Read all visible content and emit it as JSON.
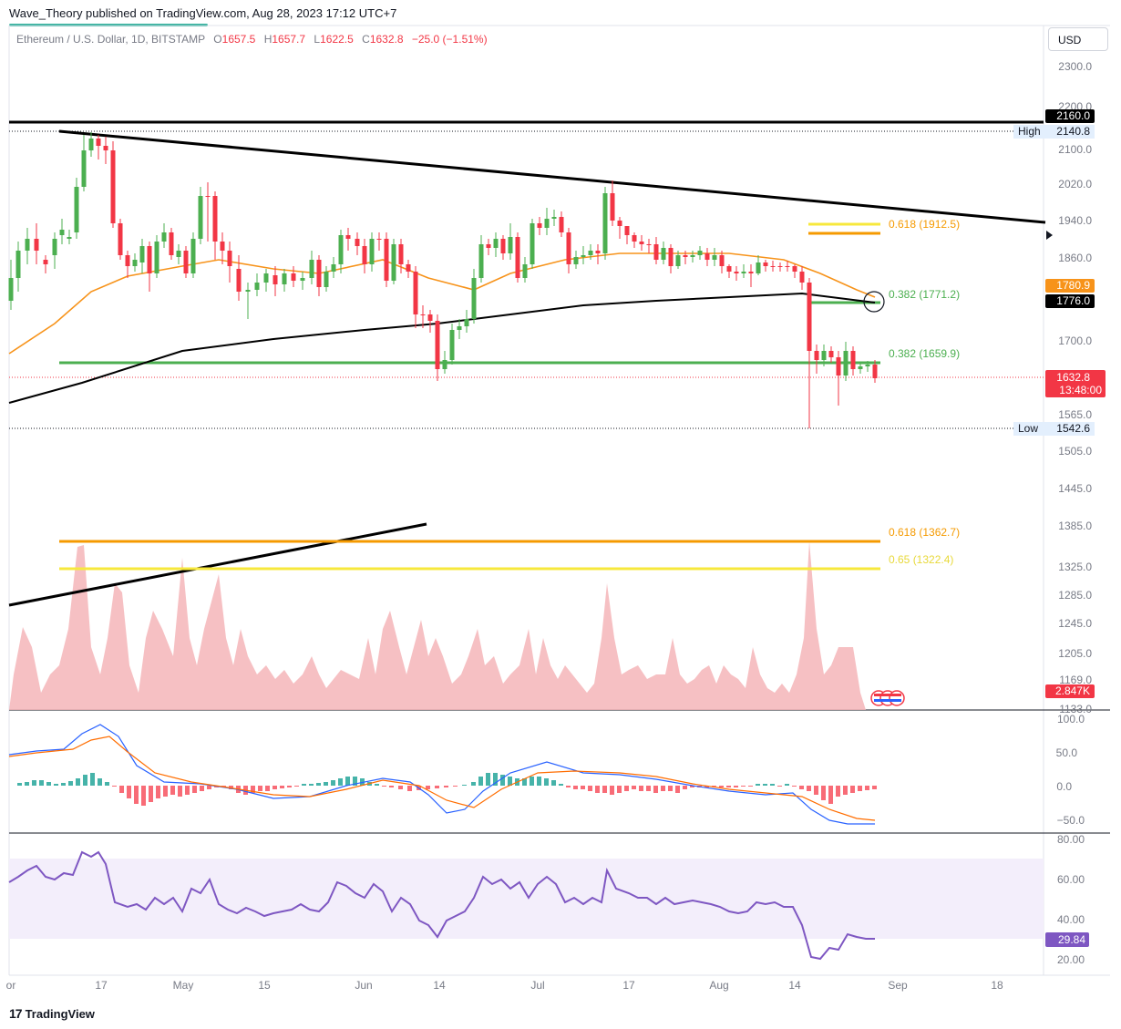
{
  "header": {
    "publisher": "Wave_Theory published on TradingView.com, Aug 28, 2023 17:12 UTC+7",
    "symbol": "Ethereum / U.S. Dollar, 1D, BITSTAMP",
    "ohlc": {
      "o": "1657.5",
      "h": "1657.7",
      "l": "1622.5",
      "c": "1632.8",
      "change": "−25.0 (−1.51%)"
    },
    "currency": "USD"
  },
  "footer": {
    "brand": "TradingView",
    "logo_icon": "tradingview-logo-icon"
  },
  "colors": {
    "up": "#4caf50",
    "down": "#f23645",
    "ema50": "#f7931a",
    "sma200": "#000000",
    "fib_green": "#4caf50",
    "fib_orange": "#f59a00",
    "fib_yellow": "#f7e83c",
    "macd": "#2962ff",
    "signal": "#ff6d00",
    "rsi": "#7e57c2",
    "rsi_band": "#f3eefb"
  },
  "chart_data": [
    {
      "type": "candlestick",
      "id": "price",
      "title": "Ethereum / U.S. Dollar, 1D, BITSTAMP",
      "x_axis": {
        "ticks": [
          "Apr",
          "17",
          "May",
          "15",
          "Jun",
          "14",
          "Jul",
          "17",
          "Aug",
          "14",
          "Sep",
          "18"
        ]
      },
      "y_axis": {
        "ticks": [
          "2300.0",
          "2200.0",
          "2100.0",
          "2020.0",
          "1940.0",
          "1860.0",
          "1700.0",
          "1565.0",
          "1505.0",
          "1445.0",
          "1385.0",
          "1325.0",
          "1285.0",
          "1245.0",
          "1205.0",
          "1169.0",
          "1133.0"
        ]
      },
      "price_labels": {
        "level_2160": "2160.0",
        "high_label": "High",
        "high": "2140.8",
        "ema": "1780.9",
        "sma": "1776.0",
        "last": "1632.8",
        "countdown": "13:48:00",
        "low_label": "Low",
        "low": "1542.6",
        "volume": "2.847K"
      },
      "fib_labels": {
        "f618_upper": "0.618 (1912.5)",
        "f382_upper": "0.382 (1771.2)",
        "f382_lower": "0.382 (1659.9)",
        "f618_lower": "0.618 (1362.7)",
        "f65_lower": "0.65 (1322.4)"
      }
    },
    {
      "type": "line",
      "id": "macd",
      "y_axis": {
        "ticks": [
          "100.0",
          "50.0",
          "0.0",
          "−50.0"
        ]
      },
      "series": [
        {
          "values": []
        },
        {
          "values": []
        }
      ]
    },
    {
      "type": "line",
      "id": "rsi",
      "y_axis": {
        "ticks": [
          "80.00",
          "60.00",
          "40.00",
          "20.00"
        ]
      },
      "band": [
        30,
        70
      ],
      "last": "29.84"
    }
  ]
}
